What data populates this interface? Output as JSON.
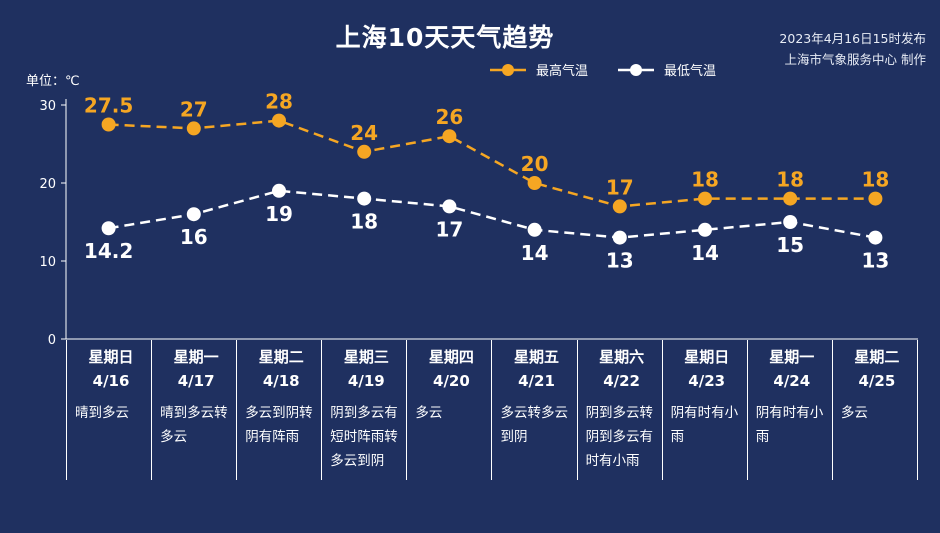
{
  "header": {
    "title": "上海10天天气趋势",
    "publish_line1": "2023年4月16日15时发布",
    "publish_line2": "上海市气象服务中心 制作",
    "unit_label": "单位：℃"
  },
  "colors": {
    "background": "#1f3060",
    "high_line": "#f5a623",
    "low_line": "#ffffff",
    "axis": "#ffffff"
  },
  "days": [
    {
      "weekday": "星期日",
      "date": "4/16",
      "weather": "晴到多云"
    },
    {
      "weekday": "星期一",
      "date": "4/17",
      "weather": "晴到多云转多云"
    },
    {
      "weekday": "星期二",
      "date": "4/18",
      "weather": "多云到阴转阴有阵雨"
    },
    {
      "weekday": "星期三",
      "date": "4/19",
      "weather": "阴到多云有短时阵雨转多云到阴"
    },
    {
      "weekday": "星期四",
      "date": "4/20",
      "weather": "多云"
    },
    {
      "weekday": "星期五",
      "date": "4/21",
      "weather": "多云转多云到阴"
    },
    {
      "weekday": "星期六",
      "date": "4/22",
      "weather": "阴到多云转阴到多云有时有小雨"
    },
    {
      "weekday": "星期日",
      "date": "4/23",
      "weather": "阴有时有小雨"
    },
    {
      "weekday": "星期一",
      "date": "4/24",
      "weather": "阴有时有小雨"
    },
    {
      "weekday": "星期二",
      "date": "4/25",
      "weather": "多云"
    }
  ],
  "chart_data": {
    "type": "line",
    "title": "上海10天天气趋势",
    "ylabel": "单位：℃",
    "ylim": [
      0,
      30
    ],
    "yticks": [
      0,
      10,
      20,
      30
    ],
    "categories": [
      "4/16",
      "4/17",
      "4/18",
      "4/19",
      "4/20",
      "4/21",
      "4/22",
      "4/23",
      "4/24",
      "4/25"
    ],
    "legend_position": "top-right",
    "grid": false,
    "series": [
      {
        "name": "最高气温",
        "values": [
          27.5,
          27,
          28,
          24,
          26,
          20,
          17,
          18,
          18,
          18
        ],
        "labels": [
          "27.5",
          "27",
          "28",
          "24",
          "26",
          "20",
          "17",
          "18",
          "18",
          "18"
        ]
      },
      {
        "name": "最低气温",
        "values": [
          14.2,
          16,
          19,
          18,
          17,
          14,
          13,
          14,
          15,
          13
        ],
        "labels": [
          "14.2",
          "16",
          "19",
          "18",
          "17",
          "14",
          "13",
          "14",
          "15",
          "13"
        ]
      }
    ]
  }
}
